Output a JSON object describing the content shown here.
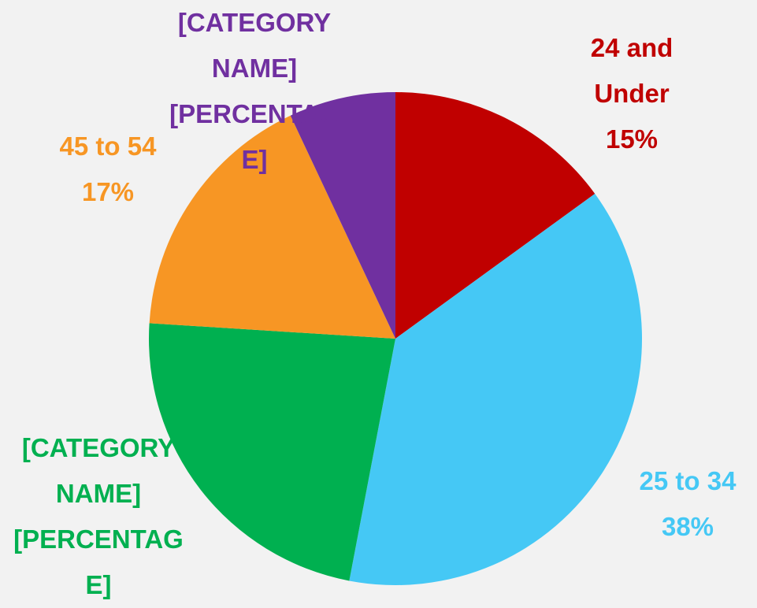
{
  "chart_data": {
    "type": "pie",
    "categories": [
      "24 and Under",
      "25 to 34",
      "[CATEGORY NAME]",
      "45 to 54",
      "[CATEGORY NAME]"
    ],
    "values": [
      15,
      38,
      23,
      17,
      7
    ],
    "value_labels": [
      "15%",
      "38%",
      "[PERCENTAGE]",
      "17%",
      "[PERCENTAGE]"
    ],
    "colors": [
      "#c00000",
      "#45c8f5",
      "#00b050",
      "#f79624",
      "#7030a0"
    ]
  }
}
